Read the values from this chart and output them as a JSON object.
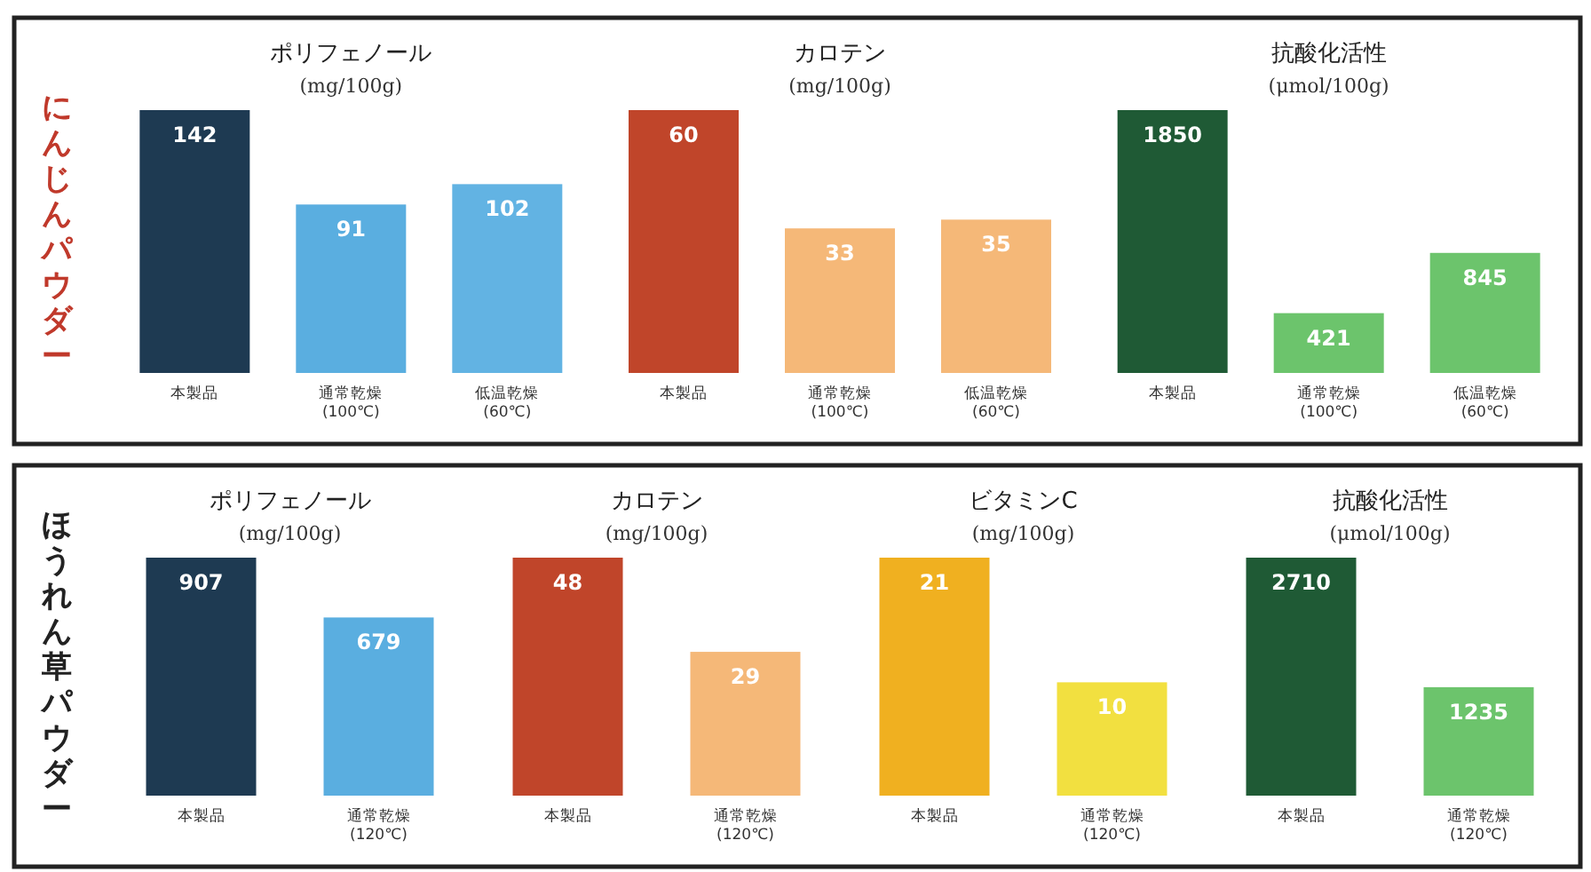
{
  "chart_data": [
    {
      "type": "bar",
      "title": "ポリフェノール",
      "subtitle": "(mg/100g)",
      "ylabel": "にんじんパウダー",
      "categories": [
        "本製品",
        "通常乾燥\n(100℃)",
        "低温乾燥\n(60℃)"
      ],
      "values": [
        142,
        91,
        102
      ],
      "colors": [
        "#1e3a52",
        "#5aaee0",
        "#62b3e3"
      ],
      "data_labels": true
    },
    {
      "type": "bar",
      "title": "カロテン",
      "subtitle": "(mg/100g)",
      "categories": [
        "本製品",
        "通常乾燥\n(100℃)",
        "低温乾燥\n(60℃)"
      ],
      "values": [
        60,
        33,
        35
      ],
      "colors": [
        "#c0452a",
        "#f5b878",
        "#f5b878"
      ],
      "data_labels": true
    },
    {
      "type": "bar",
      "title": "抗酸化活性",
      "subtitle": "(μmol/100g)",
      "categories": [
        "本製品",
        "通常乾燥\n(100℃)",
        "低温乾燥\n(60℃)"
      ],
      "values": [
        1850,
        421,
        845
      ],
      "colors": [
        "#1f5a35",
        "#6cc46c",
        "#6cc46c"
      ],
      "data_labels": true
    },
    {
      "type": "bar",
      "title": "ポリフェノール",
      "subtitle": "(mg/100g)",
      "ylabel": "ほうれん草パウダー",
      "categories": [
        "本製品",
        "通常乾燥\n(120℃)"
      ],
      "values": [
        907,
        679
      ],
      "colors": [
        "#1e3a52",
        "#5aaee0"
      ],
      "data_labels": true
    },
    {
      "type": "bar",
      "title": "カロテン",
      "subtitle": "(mg/100g)",
      "categories": [
        "本製品",
        "通常乾燥\n(120℃)"
      ],
      "values": [
        48,
        29
      ],
      "colors": [
        "#c0452a",
        "#f5b878"
      ],
      "data_labels": true
    },
    {
      "type": "bar",
      "title": "ビタミンC",
      "subtitle": "(mg/100g)",
      "categories": [
        "本製品",
        "通常乾燥\n(120℃)"
      ],
      "values": [
        21,
        10
      ],
      "colors": [
        "#f0b020",
        "#f2e040"
      ],
      "data_labels": true
    },
    {
      "type": "bar",
      "title": "抗酸化活性",
      "subtitle": "(μmol/100g)",
      "categories": [
        "本製品",
        "通常乾燥\n(120℃)"
      ],
      "values": [
        2710,
        1235
      ],
      "colors": [
        "#1f5a35",
        "#6cc46c"
      ],
      "data_labels": true
    }
  ]
}
